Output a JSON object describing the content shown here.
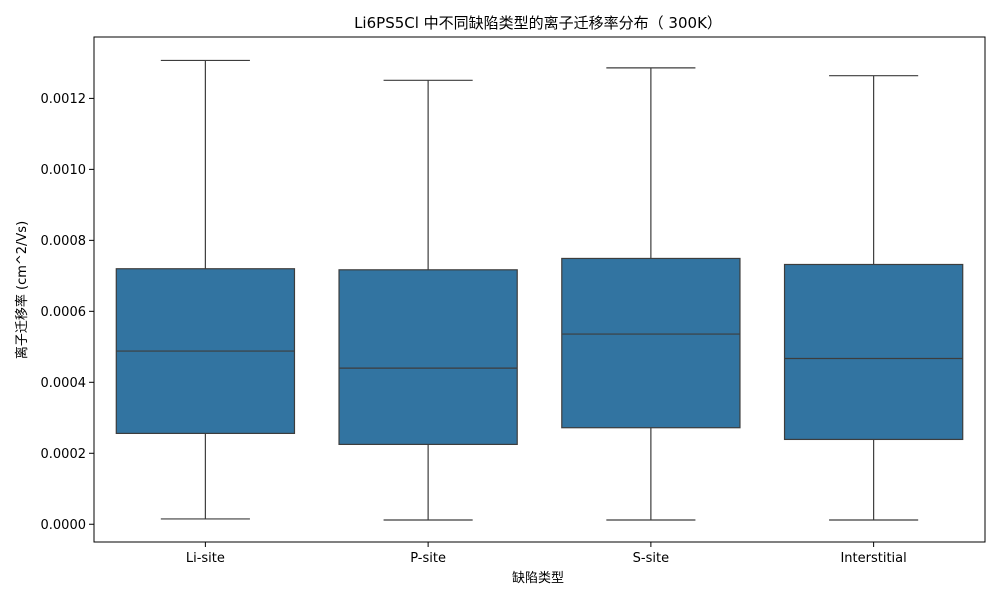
{
  "chart_data": {
    "type": "box",
    "title": "Li6PS5Cl 中不同缺陷类型的离子迁移率分布（ 300K）",
    "xlabel": "缺陷类型",
    "ylabel": "离子迁移率 (cm^2/Vs)",
    "categories": [
      "Li-site",
      "P-site",
      "S-site",
      "Interstitial"
    ],
    "series": [
      {
        "boxes": [
          {
            "whisker_low": 1.5e-05,
            "q1": 0.000256,
            "median": 0.000488,
            "q3": 0.00072,
            "whisker_high": 0.001307
          },
          {
            "whisker_low": 1.2e-05,
            "q1": 0.000225,
            "median": 0.00044,
            "q3": 0.000717,
            "whisker_high": 0.001251
          },
          {
            "whisker_low": 1.2e-05,
            "q1": 0.000272,
            "median": 0.000536,
            "q3": 0.000749,
            "whisker_high": 0.001286
          },
          {
            "whisker_low": 1.2e-05,
            "q1": 0.000239,
            "median": 0.000467,
            "q3": 0.000732,
            "whisker_high": 0.001264
          }
        ]
      }
    ],
    "yticks": [
      "0.0000",
      "0.0002",
      "0.0004",
      "0.0006",
      "0.0008",
      "0.0010",
      "0.0012"
    ],
    "ylim": [
      -5e-05,
      0.001373
    ],
    "box_color": "#3274a1",
    "line_color": "#3d3d3d",
    "grid": false
  }
}
